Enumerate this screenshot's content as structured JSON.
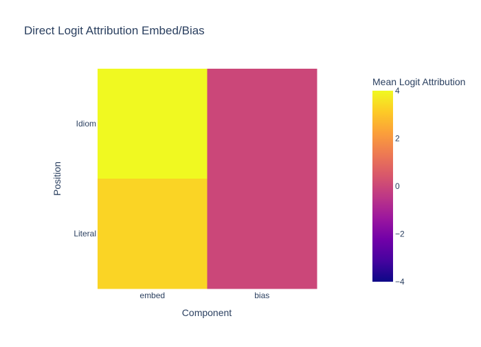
{
  "chart_data": {
    "type": "heatmap",
    "title": "Direct Logit Attribution Embed/Bias",
    "xlabel": "Component",
    "ylabel": "Position",
    "x_categories": [
      "embed",
      "bias"
    ],
    "y_categories": [
      "Idiom",
      "Literal"
    ],
    "z": [
      [
        4.0,
        0.0
      ],
      [
        3.3,
        0.0
      ]
    ],
    "colorbar": {
      "title": "Mean Logit Attribution",
      "range": [
        -4,
        4
      ],
      "ticks": [
        4,
        2,
        0,
        -2,
        -4
      ],
      "tick_labels": [
        "4",
        "2",
        "0",
        "−2",
        "−4"
      ],
      "colorscale": [
        "#0d0887",
        "#46039f",
        "#7201a8",
        "#9c179e",
        "#bd3786",
        "#d8576b",
        "#ed7953",
        "#fb9f3a",
        "#fdca26",
        "#f0f921"
      ]
    },
    "grid": false
  },
  "colors": {
    "text": "#2a3f5f",
    "tick_text": "#2a3f5f",
    "background": "#ffffff"
  }
}
